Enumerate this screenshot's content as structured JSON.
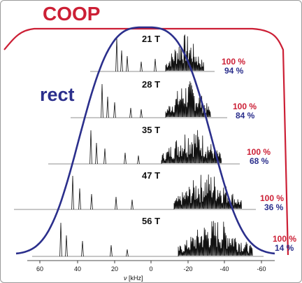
{
  "colors": {
    "coop": "#cc1f35",
    "rect": "#2b2f8c",
    "spectrum": "#111111"
  },
  "labels": {
    "coop": "COOP",
    "rect": "rect"
  },
  "axis": {
    "title_symbol": "ν",
    "title_unit": " [kHz]",
    "ticks": [
      "60",
      "40",
      "20",
      "0",
      "-20",
      "-40",
      "-60"
    ]
  },
  "spectra": [
    {
      "field": "21 T",
      "coop_pct": "100 %",
      "rect_pct": "94 %"
    },
    {
      "field": "28 T",
      "coop_pct": "100 %",
      "rect_pct": "84 %"
    },
    {
      "field": "35 T",
      "coop_pct": "100 %",
      "rect_pct": "68 %"
    },
    {
      "field": "47 T",
      "coop_pct": "100 %",
      "rect_pct": "36 %"
    },
    {
      "field": "56 T",
      "coop_pct": "100 %",
      "rect_pct": "14 %"
    }
  ]
}
